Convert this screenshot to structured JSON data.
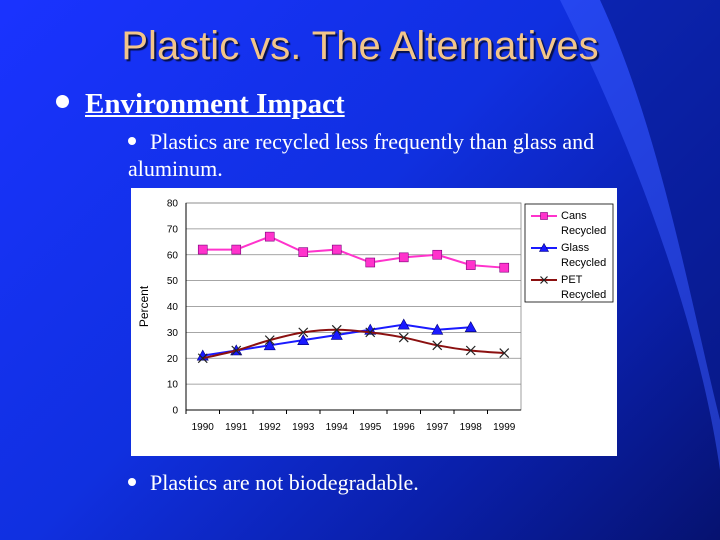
{
  "slide": {
    "title": "Plastic vs. The Alternatives",
    "bullet_main": "Environment Impact",
    "bullet_sub1": "Plastics are recycled less frequently than glass and aluminum.",
    "bullet_sub2": "Plastics are not biodegradable."
  },
  "chart_data": {
    "type": "line",
    "title": "",
    "xlabel": "",
    "ylabel": "Percent",
    "ylim": [
      0,
      80
    ],
    "yticks": [
      0,
      10,
      20,
      30,
      40,
      50,
      60,
      70,
      80
    ],
    "categories": [
      "1990",
      "1991",
      "1992",
      "1993",
      "1994",
      "1995",
      "1996",
      "1997",
      "1998",
      "1999"
    ],
    "legend_position": "top-right",
    "series": [
      {
        "name": "Cans Recycled",
        "color": "#ff33cc",
        "marker": "square",
        "values": [
          62,
          62,
          67,
          61,
          62,
          57,
          59,
          60,
          56,
          55
        ]
      },
      {
        "name": "Glass Recycled",
        "color": "#1a1aff",
        "marker": "triangle",
        "values": [
          21,
          23,
          25,
          27,
          29,
          31,
          33,
          31,
          32,
          null
        ]
      },
      {
        "name": "PET Recycled",
        "color": "#8b1010",
        "marker": "x",
        "values": [
          20,
          23,
          27,
          30,
          31,
          30,
          28,
          25,
          23,
          22
        ]
      }
    ]
  }
}
